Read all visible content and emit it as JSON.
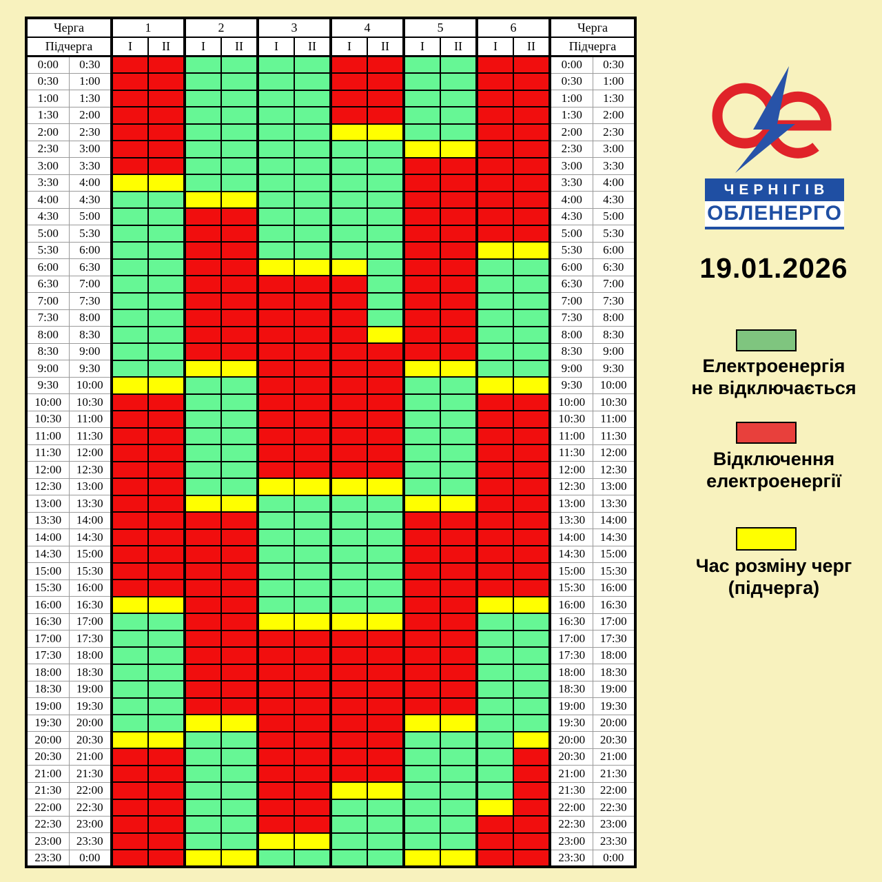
{
  "page": {
    "background": "#F8F2BE"
  },
  "date": "19.01.2026",
  "logo": {
    "line1": "ЧЕРНІГІВ",
    "line2": "ОБЛЕНЕРГО",
    "red": "#E02329",
    "blue": "#1F4FA3"
  },
  "table_header": {
    "queue_label": "Черга",
    "subqueue_label": "Підчерга",
    "queues": [
      "1",
      "2",
      "3",
      "4",
      "5",
      "6"
    ],
    "subqueues": [
      "I",
      "II"
    ]
  },
  "legend": [
    {
      "key": "G",
      "color": "#7FC57F",
      "line1": "Електроенергія",
      "line2": "не відключається"
    },
    {
      "key": "R",
      "color": "#E8403C",
      "line1": "Відключення",
      "line2": "електроенергії"
    },
    {
      "key": "Y",
      "color": "#FFFF00",
      "line1": "Час розміну черг",
      "line2": "(підчерга)"
    }
  ],
  "chart_data": {
    "type": "heatmap",
    "title": "19.01.2026",
    "columns": [
      "1-I",
      "1-II",
      "2-I",
      "2-II",
      "3-I",
      "3-II",
      "4-I",
      "4-II",
      "5-I",
      "5-II",
      "6-I",
      "6-II"
    ],
    "cell_colors": {
      "G": "#66F795",
      "R": "#F10E0E",
      "Y": "#FFFF00"
    },
    "cell_meaning": {
      "G": "Електроенергія не відключається",
      "R": "Відключення електроенергії",
      "Y": "Час розміну черг (підчерга)"
    },
    "rows": [
      {
        "start": "0:00",
        "end": "0:30",
        "cells": "RRGGGGRRGGRR"
      },
      {
        "start": "0:30",
        "end": "1:00",
        "cells": "RRGGGGRRGGRR"
      },
      {
        "start": "1:00",
        "end": "1:30",
        "cells": "RRGGGGRRGGRR"
      },
      {
        "start": "1:30",
        "end": "2:00",
        "cells": "RRGGGGRRGGRR"
      },
      {
        "start": "2:00",
        "end": "2:30",
        "cells": "RRGGGGYYGGRR"
      },
      {
        "start": "2:30",
        "end": "3:00",
        "cells": "RRGGGGGGYYRR"
      },
      {
        "start": "3:00",
        "end": "3:30",
        "cells": "RRGGGGGGRRRR"
      },
      {
        "start": "3:30",
        "end": "4:00",
        "cells": "YYGGGGGGRRRR"
      },
      {
        "start": "4:00",
        "end": "4:30",
        "cells": "GGYYGGGGRRRR"
      },
      {
        "start": "4:30",
        "end": "5:00",
        "cells": "GGRRGGGGRRRR"
      },
      {
        "start": "5:00",
        "end": "5:30",
        "cells": "GGRRGGGGRRRR"
      },
      {
        "start": "5:30",
        "end": "6:00",
        "cells": "GGRRGGGGRRYY"
      },
      {
        "start": "6:00",
        "end": "6:30",
        "cells": "GGRRYYYGRRGG"
      },
      {
        "start": "6:30",
        "end": "7:00",
        "cells": "GGRRRRRGRRGG"
      },
      {
        "start": "7:00",
        "end": "7:30",
        "cells": "GGRRRRRGRRGG"
      },
      {
        "start": "7:30",
        "end": "8:00",
        "cells": "GGRRRRRGRRGG"
      },
      {
        "start": "8:00",
        "end": "8:30",
        "cells": "GGRRRRRYRRGG"
      },
      {
        "start": "8:30",
        "end": "9:00",
        "cells": "GGRRRRRRRRGG"
      },
      {
        "start": "9:00",
        "end": "9:30",
        "cells": "GGYYRRRRYYGG"
      },
      {
        "start": "9:30",
        "end": "10:00",
        "cells": "YYGGRRRRGGYY"
      },
      {
        "start": "10:00",
        "end": "10:30",
        "cells": "RRGGRRRRGGRR"
      },
      {
        "start": "10:30",
        "end": "11:00",
        "cells": "RRGGRRRRGGRR"
      },
      {
        "start": "11:00",
        "end": "11:30",
        "cells": "RRGGRRRRGGRR"
      },
      {
        "start": "11:30",
        "end": "12:00",
        "cells": "RRGGRRRRGGRR"
      },
      {
        "start": "12:00",
        "end": "12:30",
        "cells": "RRGGRRRRGGRR"
      },
      {
        "start": "12:30",
        "end": "13:00",
        "cells": "RRGGYYYYGGRR"
      },
      {
        "start": "13:00",
        "end": "13:30",
        "cells": "RRYYGGGGYYRR"
      },
      {
        "start": "13:30",
        "end": "14:00",
        "cells": "RRRRGGGGRRRR"
      },
      {
        "start": "14:00",
        "end": "14:30",
        "cells": "RRRRGGGGRRRR"
      },
      {
        "start": "14:30",
        "end": "15:00",
        "cells": "RRRRGGGGRRRR"
      },
      {
        "start": "15:00",
        "end": "15:30",
        "cells": "RRRRGGGGRRRR"
      },
      {
        "start": "15:30",
        "end": "16:00",
        "cells": "RRRRGGGGRRRR"
      },
      {
        "start": "16:00",
        "end": "16:30",
        "cells": "YYRRGGGGRRYY"
      },
      {
        "start": "16:30",
        "end": "17:00",
        "cells": "GGRRYYYYRRGG"
      },
      {
        "start": "17:00",
        "end": "17:30",
        "cells": "GGRRRRRRRRGG"
      },
      {
        "start": "17:30",
        "end": "18:00",
        "cells": "GGRRRRRRRRGG"
      },
      {
        "start": "18:00",
        "end": "18:30",
        "cells": "GGRRRRRRRRGG"
      },
      {
        "start": "18:30",
        "end": "19:00",
        "cells": "GGRRRRRRRRGG"
      },
      {
        "start": "19:00",
        "end": "19:30",
        "cells": "GGRRRRRRRRGG"
      },
      {
        "start": "19:30",
        "end": "20:00",
        "cells": "GGYYRRRRYYGG"
      },
      {
        "start": "20:00",
        "end": "20:30",
        "cells": "YYGGRRRRGGGY"
      },
      {
        "start": "20:30",
        "end": "21:00",
        "cells": "RRGGRRRRGGGR"
      },
      {
        "start": "21:00",
        "end": "21:30",
        "cells": "RRGGRRRRGGGR"
      },
      {
        "start": "21:30",
        "end": "22:00",
        "cells": "RRGGRRYYGGGR"
      },
      {
        "start": "22:00",
        "end": "22:30",
        "cells": "RRGGRRGGGGYR"
      },
      {
        "start": "22:30",
        "end": "23:00",
        "cells": "RRGGRRGGGGRR"
      },
      {
        "start": "23:00",
        "end": "23:30",
        "cells": "RRGGYYGGGGRR"
      },
      {
        "start": "23:30",
        "end": "0:00",
        "cells": "RRYYGGGGYYRR"
      }
    ]
  }
}
